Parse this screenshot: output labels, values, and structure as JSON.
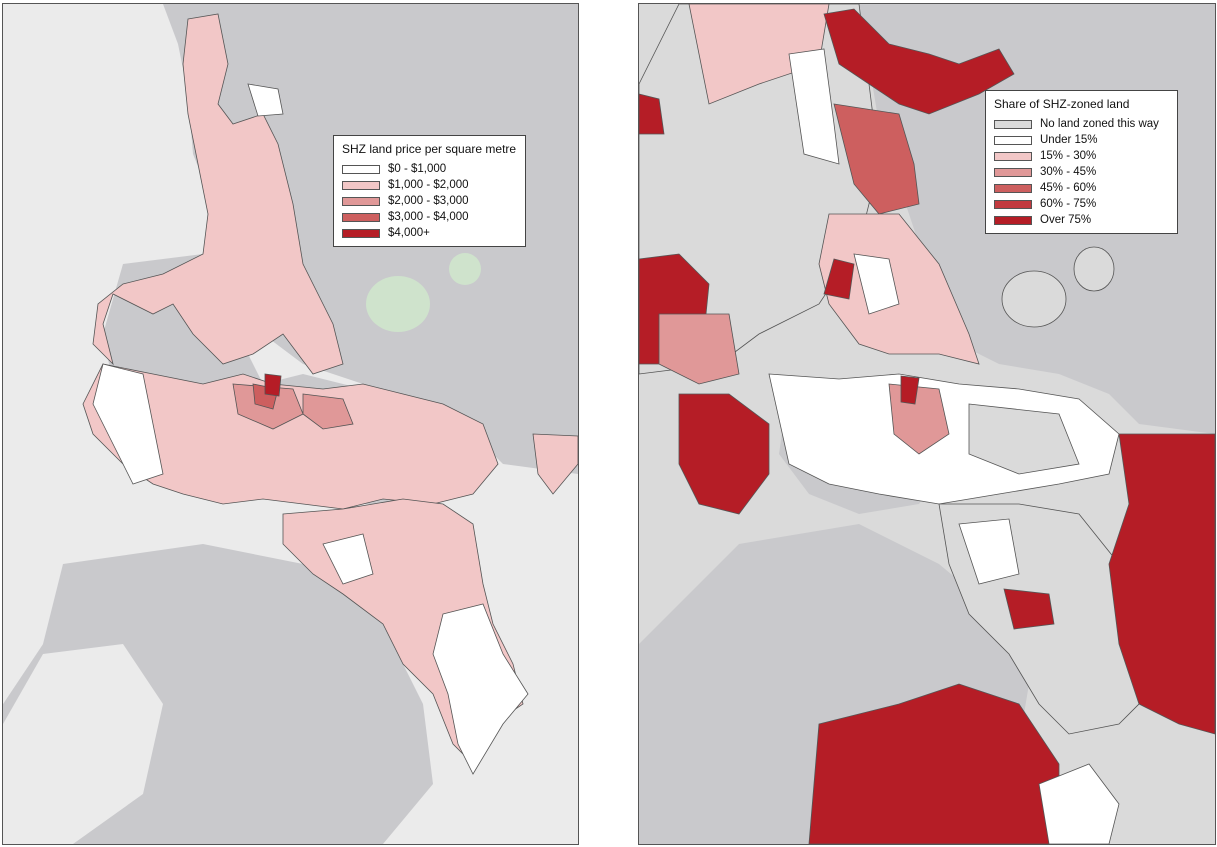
{
  "colors": {
    "water": "#c9c9cc",
    "land": "#ebebeb",
    "park": "#cfe3cc",
    "border": "#555555",
    "grey_zone": "#dadada",
    "class0": "#ffffff",
    "class1": "#f2c7c7",
    "class2": "#e09898",
    "class3": "#cd5f5f",
    "class4": "#ba3036",
    "class5": "#be1e2d",
    "class6": "#b51d26"
  },
  "left_map": {
    "legend": {
      "title": "SHZ land price per square metre",
      "items": [
        {
          "label": "$0 - $1,000",
          "color": "#ffffff"
        },
        {
          "label": "$1,000 - $2,000",
          "color": "#f2c7c7"
        },
        {
          "label": "$2,000 - $3,000",
          "color": "#e09898"
        },
        {
          "label": "$3,000 - $4,000",
          "color": "#cd5f5f"
        },
        {
          "label": "$4,000+",
          "color": "#b51d26"
        }
      ]
    }
  },
  "right_map": {
    "legend": {
      "title": "Share of SHZ-zoned land",
      "items": [
        {
          "label": "No land zoned this way",
          "color": "#dadada"
        },
        {
          "label": "Under 15%",
          "color": "#ffffff"
        },
        {
          "label": "15% - 30%",
          "color": "#f2c7c7"
        },
        {
          "label": "30% - 45%",
          "color": "#e09898"
        },
        {
          "label": "45% - 60%",
          "color": "#cd5f5f"
        },
        {
          "label": "60% - 75%",
          "color": "#c23a3f"
        },
        {
          "label": "Over 75%",
          "color": "#b51d26"
        }
      ]
    }
  }
}
